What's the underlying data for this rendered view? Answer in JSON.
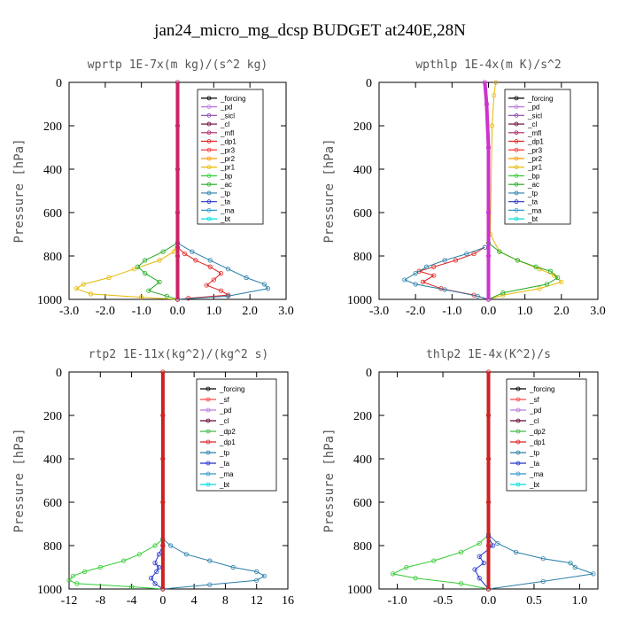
{
  "figure_title": "jan24_micro_mg_dcsp  BUDGET at240E,28N",
  "chart_data": [
    {
      "type": "line",
      "title": "wprtp   1E-7x(m kg)/(s^2 kg)",
      "ylabel": "Pressure [hPa]",
      "xlim": [
        -3.0,
        3.0
      ],
      "ylim": [
        1000,
        0
      ],
      "xticks": [
        "-3.0",
        "-2.0",
        "-1.0",
        "0.0",
        "1.0",
        "2.0",
        "3.0"
      ],
      "xtick_values": [
        -3,
        -2,
        -1,
        0,
        1,
        2,
        3
      ],
      "yticks": [
        "0",
        "200",
        "400",
        "600",
        "800",
        "1000"
      ],
      "ytick_values": [
        0,
        200,
        400,
        600,
        800,
        1000
      ],
      "legend": [
        "_forcing",
        "_pd",
        "_sicl",
        "_cl",
        "_mfl",
        "_dp1",
        "_pr3",
        "_pr2",
        "_pr1",
        "_bp",
        "_ac",
        "_tp",
        "_ta",
        "_ma",
        "_bt"
      ],
      "series": [
        {
          "name": "_pr1",
          "color": "#e6b800",
          "x": [
            0,
            -0.1,
            -0.5,
            -1.2,
            -1.9,
            -2.6,
            -2.8,
            -2.4,
            -1.0,
            0
          ],
          "y": [
            740,
            780,
            820,
            860,
            900,
            930,
            950,
            975,
            990,
            1000
          ]
        },
        {
          "name": "_ac",
          "color": "#22aa22",
          "x": [
            0,
            -0.4,
            -0.9,
            -1.1,
            -0.9,
            -0.5,
            -0.8,
            -0.3,
            0
          ],
          "y": [
            740,
            780,
            820,
            850,
            880,
            920,
            960,
            985,
            1000
          ]
        },
        {
          "name": "_dp1",
          "color": "#e02020",
          "x": [
            0,
            0.2,
            0.5,
            0.9,
            1.2,
            1.0,
            0.8,
            1.2,
            1.4,
            0.3,
            0
          ],
          "y": [
            760,
            790,
            820,
            850,
            880,
            910,
            935,
            960,
            980,
            995,
            1000
          ]
        },
        {
          "name": "_tp",
          "color": "#2a7fa8",
          "x": [
            0,
            0.4,
            0.9,
            1.4,
            1.9,
            2.4,
            2.5,
            1.4,
            0
          ],
          "y": [
            740,
            780,
            820,
            860,
            900,
            930,
            950,
            985,
            1000
          ]
        },
        {
          "name": "_bt",
          "color": "#cc2266",
          "x": [
            0,
            0,
            0,
            0,
            0,
            0
          ],
          "y": [
            0,
            200,
            400,
            600,
            800,
            1000
          ]
        }
      ]
    },
    {
      "type": "line",
      "title": "wpthlp   1E-4x(m K)/s^2",
      "ylabel": "Pressure [hPa]",
      "xlim": [
        -3.0,
        3.0
      ],
      "ylim": [
        1000,
        0
      ],
      "xticks": [
        "-3.0",
        "-2.0",
        "-1.0",
        "0.0",
        "1.0",
        "2.0",
        "3.0"
      ],
      "xtick_values": [
        -3,
        -2,
        -1,
        0,
        1,
        2,
        3
      ],
      "yticks": [
        "0",
        "200",
        "400",
        "600",
        "800",
        "1000"
      ],
      "ytick_values": [
        0,
        200,
        400,
        600,
        800,
        1000
      ],
      "legend": [
        "_forcing",
        "_pd",
        "_sicl",
        "_cl",
        "_mfl",
        "_dp1",
        "_pr3",
        "_pr2",
        "_pr1",
        "_bp",
        "_ac",
        "_tp",
        "_ta",
        "_ma",
        "_bt"
      ],
      "series": [
        {
          "name": "_pr1",
          "color": "#e6b800",
          "x": [
            0.2,
            0.15,
            0.1,
            0.05,
            0.3,
            0.8,
            1.4,
            1.8,
            2.0,
            1.4,
            0.4,
            0
          ],
          "y": [
            0,
            60,
            200,
            700,
            780,
            820,
            860,
            890,
            920,
            950,
            980,
            1000
          ]
        },
        {
          "name": "_ac",
          "color": "#22aa22",
          "x": [
            0,
            0.3,
            0.8,
            1.3,
            1.7,
            1.9,
            1.6,
            0.4,
            0
          ],
          "y": [
            740,
            780,
            820,
            850,
            870,
            900,
            930,
            970,
            1000
          ]
        },
        {
          "name": "_dp1",
          "color": "#e02020",
          "x": [
            -0.1,
            -0.4,
            -0.9,
            -1.5,
            -1.9,
            -1.5,
            -1.8,
            -1.3,
            -0.4,
            0
          ],
          "y": [
            760,
            790,
            820,
            850,
            870,
            890,
            920,
            950,
            980,
            1000
          ]
        },
        {
          "name": "_tp",
          "color": "#2a7fa8",
          "x": [
            -0.1,
            -0.6,
            -1.2,
            -1.7,
            -2.0,
            -2.3,
            -2.0,
            -1.2,
            -0.3,
            0
          ],
          "y": [
            760,
            790,
            820,
            850,
            880,
            910,
            930,
            955,
            985,
            1000
          ]
        },
        {
          "name": "_bt",
          "color": "#cc33cc",
          "x": [
            -0.1,
            -0.05,
            0,
            0,
            0,
            0
          ],
          "y": [
            0,
            100,
            300,
            600,
            800,
            1000
          ]
        }
      ]
    },
    {
      "type": "line",
      "title": "rtp2   1E-11x(kg^2)/(kg^2 s)",
      "ylabel": "Pressure [hPa]",
      "xlim": [
        -12,
        16
      ],
      "ylim": [
        1000,
        0
      ],
      "xticks": [
        "-12",
        "-8",
        "-4",
        "0",
        "4",
        "8",
        "12",
        "16"
      ],
      "xtick_values": [
        -12,
        -8,
        -4,
        0,
        4,
        8,
        12,
        16
      ],
      "yticks": [
        "0",
        "200",
        "400",
        "600",
        "800",
        "1000"
      ],
      "ytick_values": [
        0,
        200,
        400,
        600,
        800,
        1000
      ],
      "legend": [
        "_forcing",
        "_sf",
        "_pd",
        "_cl",
        "_dp2",
        "_dp1",
        "_tp",
        "_ta",
        "_ma",
        "_bt"
      ],
      "series": [
        {
          "name": "_dp1",
          "color": "#33cc33",
          "x": [
            0,
            -1,
            -3,
            -5,
            -8,
            -10,
            -11.5,
            -12,
            -11,
            -4,
            0
          ],
          "y": [
            770,
            800,
            840,
            870,
            900,
            920,
            940,
            960,
            975,
            990,
            1000
          ]
        },
        {
          "name": "_tp",
          "color": "#2a7fa8",
          "x": [
            0,
            1,
            3,
            6,
            9,
            12,
            13,
            12,
            6,
            0
          ],
          "y": [
            770,
            800,
            840,
            870,
            900,
            920,
            940,
            960,
            980,
            1000
          ]
        },
        {
          "name": "_ta",
          "color": "#2233cc",
          "x": [
            0,
            -0.5,
            -1,
            -0.5,
            -0.8,
            -1.5,
            -1,
            0
          ],
          "y": [
            800,
            840,
            880,
            900,
            920,
            950,
            975,
            1000
          ]
        },
        {
          "name": "_bt",
          "color": "#cc2222",
          "x": [
            0,
            0,
            0,
            0,
            0,
            0
          ],
          "y": [
            0,
            200,
            400,
            600,
            800,
            1000
          ]
        }
      ]
    },
    {
      "type": "line",
      "title": "thlp2   1E-4x(K^2)/s",
      "ylabel": "Pressure [hPa]",
      "xlim": [
        -1.2,
        1.2
      ],
      "ylim": [
        1000,
        0
      ],
      "xticks": [
        "-1.0",
        "-0.5",
        "0.0",
        "0.5",
        "1.0"
      ],
      "xtick_values": [
        -1.0,
        -0.5,
        0.0,
        0.5,
        1.0
      ],
      "yticks": [
        "0",
        "200",
        "400",
        "600",
        "800",
        "1000"
      ],
      "ytick_values": [
        0,
        200,
        400,
        600,
        800,
        1000
      ],
      "legend": [
        "_forcing",
        "_sf",
        "_pd",
        "_cl",
        "_dp2",
        "_dp1",
        "_tp",
        "_ta",
        "_ma",
        "_bt"
      ],
      "series": [
        {
          "name": "_dp1",
          "color": "#33cc33",
          "x": [
            0,
            -0.1,
            -0.3,
            -0.6,
            -0.9,
            -1.05,
            -0.8,
            -0.3,
            0
          ],
          "y": [
            750,
            790,
            830,
            870,
            900,
            930,
            950,
            975,
            1000
          ]
        },
        {
          "name": "_tp",
          "color": "#2a7fa8",
          "x": [
            0,
            0.1,
            0.3,
            0.6,
            0.9,
            0.95,
            1.15,
            0.6,
            0
          ],
          "y": [
            750,
            790,
            830,
            860,
            880,
            900,
            930,
            965,
            1000
          ]
        },
        {
          "name": "_ta",
          "color": "#2233cc",
          "x": [
            0,
            0.05,
            -0.1,
            -0.05,
            -0.15,
            -0.1,
            0
          ],
          "y": [
            760,
            800,
            850,
            880,
            910,
            950,
            1000
          ]
        },
        {
          "name": "_bt",
          "color": "#cc2222",
          "x": [
            0,
            0,
            0,
            0,
            0,
            0
          ],
          "y": [
            0,
            200,
            400,
            600,
            800,
            1000
          ]
        }
      ]
    }
  ],
  "legend_colors": {
    "_forcing": "#000000",
    "_pd": "#bb77dd",
    "_sicl": "#8844aa",
    "_cl": "#660033",
    "_mfl": "#aa2266",
    "_dp1": "#e02020",
    "_pr3": "#ff3333",
    "_pr2": "#ff9900",
    "_pr1": "#e6b800",
    "_bp": "#33cc33",
    "_ac": "#22aa22",
    "_tp": "#2a7fa8",
    "_ta": "#2233cc",
    "_ma": "#3399cc",
    "_bt": "#00dddd",
    "_sf": "#ff4444",
    "_dp2": "#44bb44"
  }
}
